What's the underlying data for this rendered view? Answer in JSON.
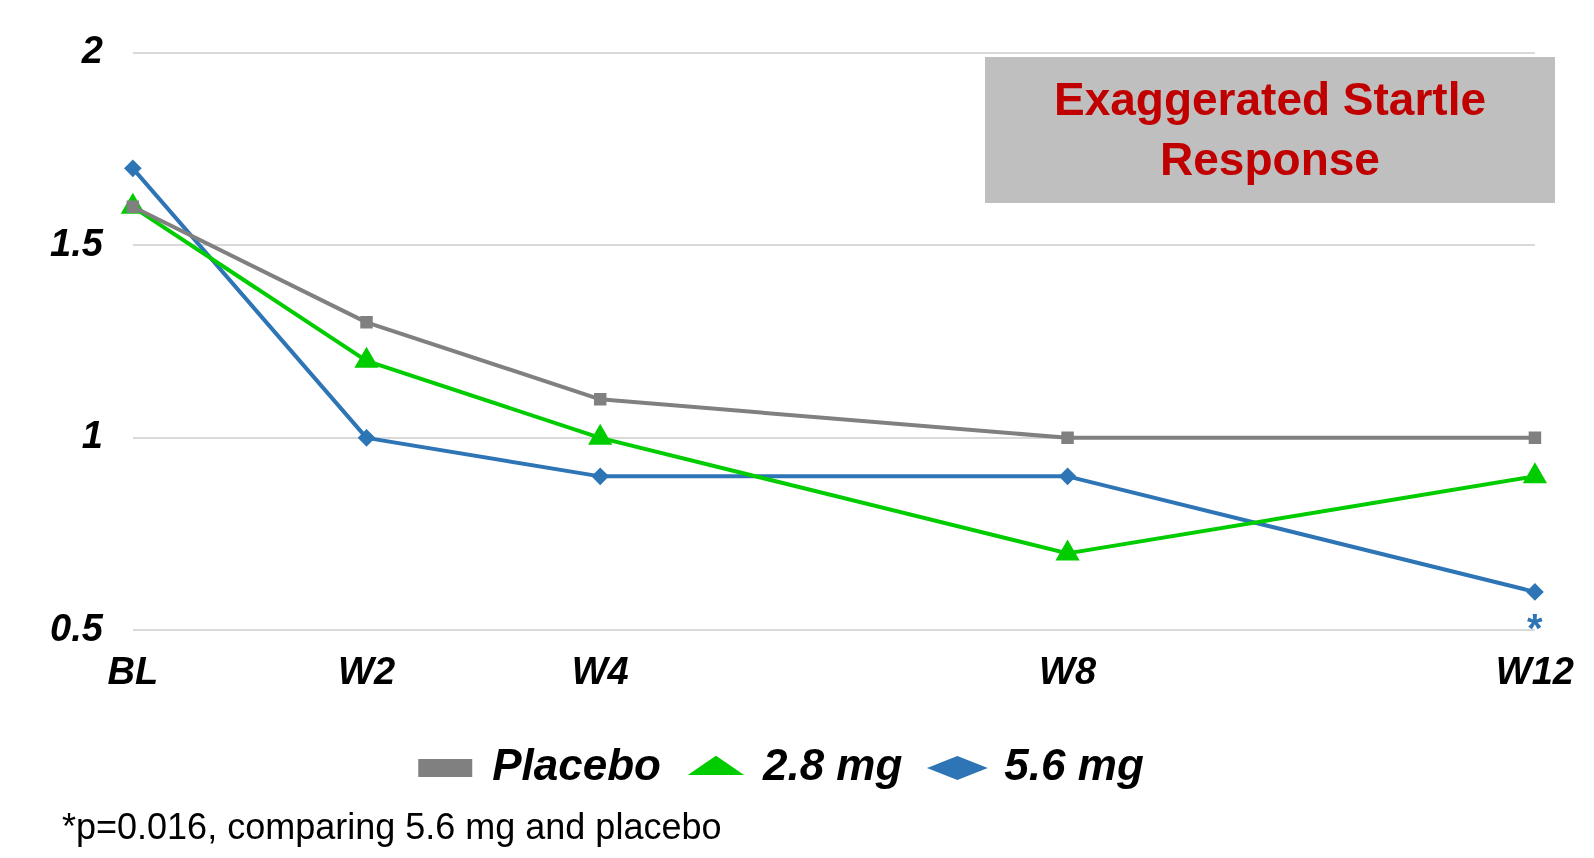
{
  "chart_data": {
    "type": "line",
    "categories": [
      "BL",
      null,
      "W2",
      null,
      "W4",
      null,
      null,
      null,
      "W8",
      null,
      null,
      null,
      "W12"
    ],
    "ylim": [
      0.5,
      2
    ],
    "yticks": [
      0.5,
      1,
      1.5,
      2
    ],
    "grid": "y",
    "legend": "bottom",
    "line_style": "solid",
    "series": [
      {
        "name": "Placebo",
        "color": "#808080",
        "marker": "square",
        "values": [
          1.6,
          null,
          1.3,
          null,
          1.1,
          null,
          null,
          null,
          1.0,
          null,
          null,
          null,
          1.0
        ]
      },
      {
        "name": "2.8 mg",
        "color": "#00cc00",
        "marker": "triangle",
        "values": [
          1.6,
          null,
          1.2,
          null,
          1.0,
          null,
          null,
          null,
          0.7,
          null,
          null,
          null,
          0.9
        ]
      },
      {
        "name": "5.6 mg",
        "color": "#2e75b6",
        "marker": "diamond",
        "values": [
          1.7,
          null,
          1.0,
          null,
          0.9,
          null,
          null,
          null,
          0.9,
          null,
          null,
          null,
          0.6
        ]
      }
    ],
    "annotations": [
      "Exaggerated Startle Response",
      "*",
      "*p=0.016, comparing 5.6 mg and placebo"
    ]
  }
}
